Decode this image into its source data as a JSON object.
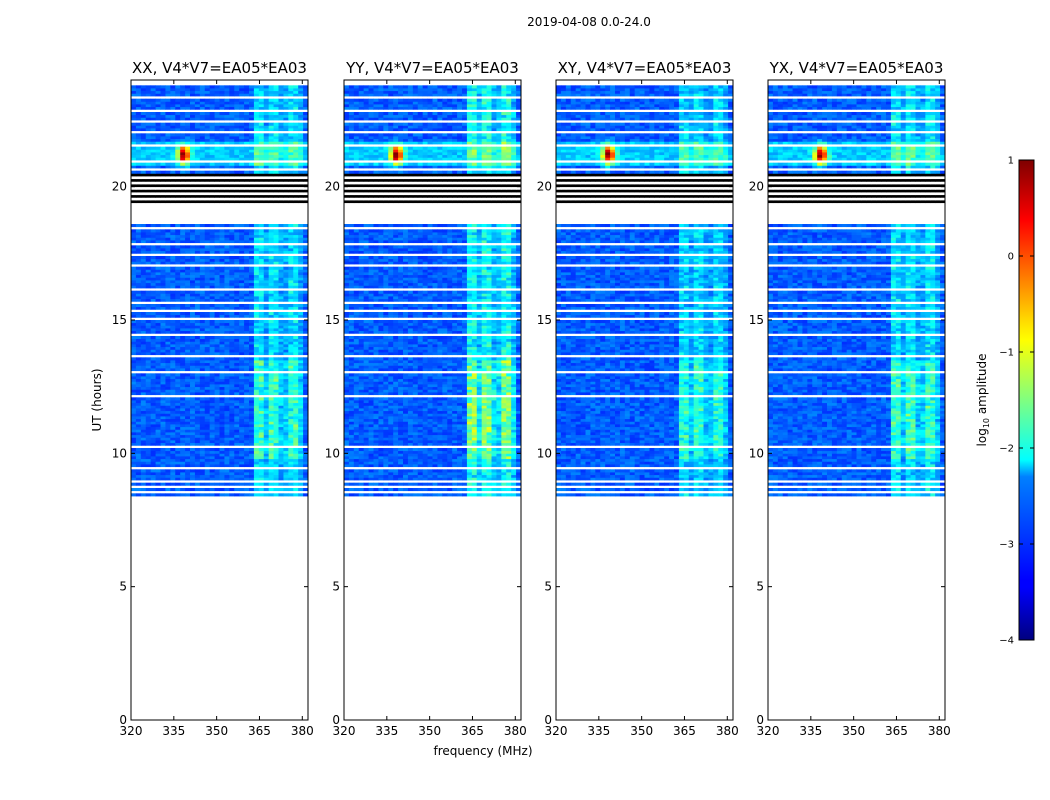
{
  "chart_data": {
    "type": "heatmap",
    "title": "2019-04-08 0.0-24.0",
    "xlabel": "frequency (MHz)",
    "ylabel": "UT (hours)",
    "xlim": [
      320,
      382
    ],
    "ylim": [
      0,
      24
    ],
    "xticks": [
      320,
      335,
      350,
      365,
      380
    ],
    "yticks": [
      0,
      5,
      10,
      15,
      20
    ],
    "panels": [
      {
        "title": "XX, V4*V7=EA05*EA03",
        "rfi_strength": 0.55
      },
      {
        "title": "YY, V4*V7=EA05*EA03",
        "rfi_strength": 0.7
      },
      {
        "title": "XY, V4*V7=EA05*EA03",
        "rfi_strength": 0.5
      },
      {
        "title": "YX, V4*V7=EA05*EA03",
        "rfi_strength": 0.55
      }
    ],
    "data_start_ut": 8.4,
    "data_end_ut": 23.8,
    "flagged_block_ut": [
      19.4,
      20.5
    ],
    "gap_bands_ut": [
      [
        18.6,
        19.4
      ],
      [
        8.9,
        9.0
      ],
      [
        14.35,
        14.5
      ],
      [
        15.55,
        15.7
      ]
    ],
    "rfi_band_mhz": [
      363,
      380
    ],
    "strong_source": {
      "freq_mhz": 338.5,
      "ut": 21.2
    },
    "colorbar": {
      "label": "log10 amplitude",
      "min": -4,
      "max": 1,
      "ticks": [
        1,
        0,
        -1,
        -2,
        -3,
        -4
      ],
      "tick_labels": [
        "1",
        "0",
        "−1",
        "−2",
        "−3",
        "−4"
      ],
      "colormap": "jet"
    }
  }
}
